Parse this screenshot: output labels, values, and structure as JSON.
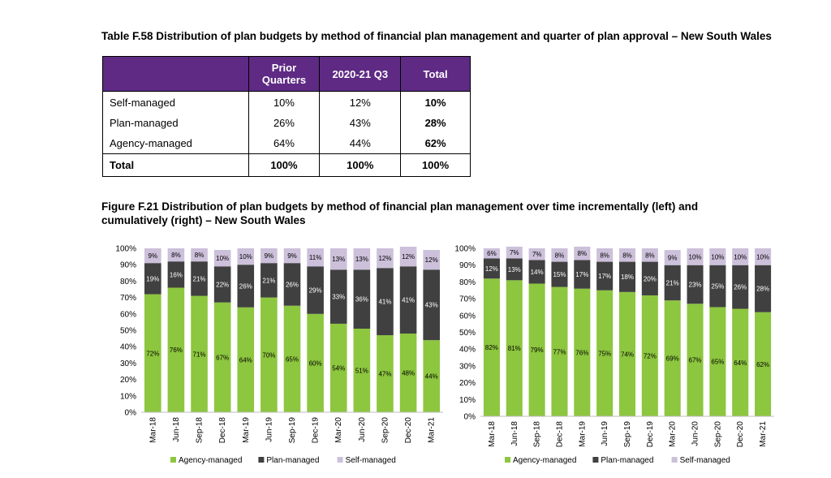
{
  "table": {
    "caption": "Table F.58 Distribution of plan budgets by method of financial plan management and quarter of plan approval – New South Wales",
    "headers": [
      "",
      "Prior Quarters",
      "2020-21 Q3",
      "Total"
    ],
    "rows": [
      {
        "label": "Self-managed",
        "prior": "10%",
        "q3": "12%",
        "total": "10%"
      },
      {
        "label": "Plan-managed",
        "prior": "26%",
        "q3": "43%",
        "total": "28%"
      },
      {
        "label": "Agency-managed",
        "prior": "64%",
        "q3": "44%",
        "total": "62%"
      }
    ],
    "total_row": {
      "label": "Total",
      "prior": "100%",
      "q3": "100%",
      "total": "100%"
    }
  },
  "figure_caption": "Figure F.21 Distribution of plan budgets by method of financial plan management over time incrementally (left) and cumulatively (right) – New South Wales",
  "chart_data": [
    {
      "type": "bar",
      "stacked": true,
      "title": "",
      "xlabel": "",
      "ylabel": "",
      "ylim": [
        0,
        100
      ],
      "yticks": [
        "0%",
        "10%",
        "20%",
        "30%",
        "40%",
        "50%",
        "60%",
        "70%",
        "80%",
        "90%",
        "100%"
      ],
      "categories": [
        "Mar-18",
        "Jun-18",
        "Sep-18",
        "Dec-18",
        "Mar-19",
        "Jun-19",
        "Sep-19",
        "Dec-19",
        "Mar-20",
        "Jun-20",
        "Sep-20",
        "Dec-20",
        "Mar-21"
      ],
      "series": [
        {
          "name": "Agency-managed",
          "color": "#8dc63f",
          "values": [
            72,
            76,
            71,
            67,
            64,
            70,
            65,
            60,
            54,
            51,
            47,
            48,
            44
          ]
        },
        {
          "name": "Plan-managed",
          "color": "#404040",
          "values": [
            19,
            16,
            21,
            22,
            26,
            21,
            26,
            29,
            33,
            36,
            41,
            41,
            43
          ]
        },
        {
          "name": "Self-managed",
          "color": "#ccc0da",
          "values": [
            9,
            8,
            8,
            10,
            10,
            9,
            9,
            11,
            13,
            13,
            12,
            12,
            12
          ]
        }
      ],
      "legend": "bottom",
      "grid": false
    },
    {
      "type": "bar",
      "stacked": true,
      "title": "",
      "xlabel": "",
      "ylabel": "",
      "ylim": [
        0,
        100
      ],
      "yticks": [
        "0%",
        "10%",
        "20%",
        "30%",
        "40%",
        "50%",
        "60%",
        "70%",
        "80%",
        "90%",
        "100%"
      ],
      "categories": [
        "Mar-18",
        "Jun-18",
        "Sep-18",
        "Dec-18",
        "Mar-19",
        "Jun-19",
        "Sep-19",
        "Dec-19",
        "Mar-20",
        "Jun-20",
        "Sep-20",
        "Dec-20",
        "Mar-21"
      ],
      "series": [
        {
          "name": "Agency-managed",
          "color": "#8dc63f",
          "values": [
            82,
            81,
            79,
            77,
            76,
            75,
            74,
            72,
            69,
            67,
            65,
            64,
            62
          ]
        },
        {
          "name": "Plan-managed",
          "color": "#404040",
          "values": [
            12,
            13,
            14,
            15,
            17,
            17,
            18,
            20,
            21,
            23,
            25,
            26,
            28
          ]
        },
        {
          "name": "Self-managed",
          "color": "#ccc0da",
          "values": [
            6,
            7,
            7,
            8,
            8,
            8,
            8,
            8,
            9,
            10,
            10,
            10,
            10
          ]
        }
      ],
      "legend": "bottom",
      "grid": false
    }
  ]
}
